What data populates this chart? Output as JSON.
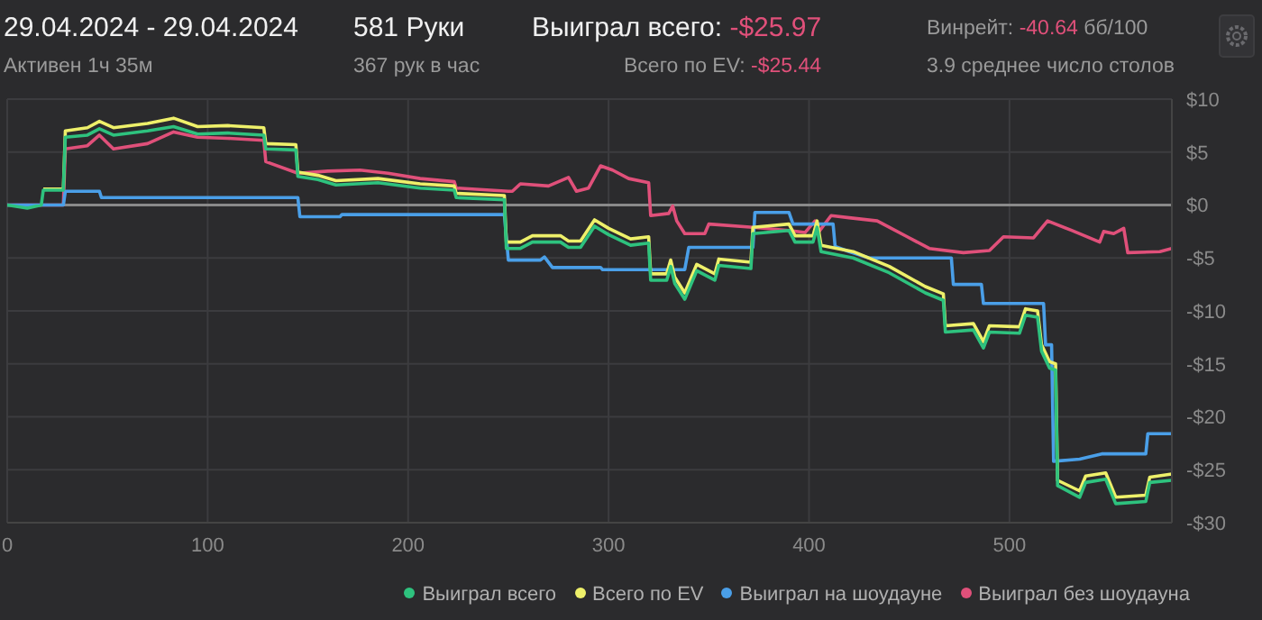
{
  "chart_data": {
    "type": "line",
    "title": "29.04.2024 - 29.04.2024",
    "subtitle": "Активен 1ч 35м",
    "annotations": [
      "581 Руки",
      "367 рук в час",
      "Выиграл всего: -$25.97",
      "Всего по EV: -$25.44",
      "Винрейт: -40.64 бб/100",
      "3.9 среднее число столов"
    ],
    "xlim": [
      0,
      581
    ],
    "xticks": [
      0,
      100,
      200,
      300,
      400,
      500
    ],
    "ylim": [
      -30,
      10
    ],
    "yticks": [
      {
        "value": 10,
        "label": "$10"
      },
      {
        "value": 5,
        "label": "$5"
      },
      {
        "value": 0,
        "label": "$0"
      },
      {
        "value": -5,
        "label": "-$5"
      },
      {
        "value": -10,
        "label": "-$10"
      },
      {
        "value": -15,
        "label": "-$15"
      },
      {
        "value": -20,
        "label": "-$20"
      },
      {
        "value": -25,
        "label": "-$25"
      },
      {
        "value": -30,
        "label": "-$30"
      }
    ],
    "grid": true,
    "legend": "bottom right",
    "ref_lines": [
      {
        "axis": "y",
        "value": 0,
        "color": "#8a8a8a"
      }
    ],
    "series": [
      {
        "name": "Выиграл всего",
        "color": "#2ec27e",
        "x": [
          0,
          10,
          17,
          18,
          28,
          29,
          40,
          46,
          53,
          70,
          83,
          95,
          110,
          128,
          129,
          144,
          145,
          155,
          164,
          185,
          206,
          223,
          224,
          248,
          249,
          256,
          262,
          276,
          280,
          286,
          293,
          300,
          311,
          320,
          321,
          329,
          331,
          333,
          338,
          344,
          353,
          355,
          371,
          372,
          390,
          393,
          402,
          404,
          406,
          422,
          440,
          458,
          467,
          468,
          482,
          487,
          490,
          505,
          508,
          514,
          516,
          520,
          523,
          524,
          535,
          538,
          548,
          553,
          568,
          570,
          581
        ],
        "values": [
          0,
          -0.3,
          0,
          1.4,
          1.4,
          6.4,
          6.6,
          7.2,
          6.6,
          7.0,
          7.4,
          6.7,
          6.8,
          6.6,
          5.3,
          5.2,
          2.7,
          2.4,
          1.9,
          2.1,
          1.6,
          1.4,
          0.7,
          0.5,
          -4.1,
          -4.1,
          -3.5,
          -3.5,
          -4.0,
          -4.0,
          -2.0,
          -2.8,
          -3.8,
          -3.6,
          -7.1,
          -7.1,
          -5.8,
          -7.4,
          -8.9,
          -6.2,
          -7.1,
          -5.7,
          -6.0,
          -2.7,
          -2.4,
          -3.5,
          -3.5,
          -2.1,
          -4.4,
          -5.0,
          -6.4,
          -8.3,
          -9.0,
          -12.0,
          -11.8,
          -13.5,
          -12.0,
          -12.1,
          -10.4,
          -10.6,
          -13.8,
          -15.4,
          -15.6,
          -26.5,
          -27.6,
          -26.2,
          -25.9,
          -28.2,
          -28.0,
          -26.2,
          -26.0
        ]
      },
      {
        "name": "Всего по EV",
        "color": "#eef06a",
        "x": [
          18,
          28,
          29,
          40,
          46,
          53,
          70,
          83,
          95,
          110,
          128,
          129,
          144,
          145,
          155,
          164,
          185,
          206,
          223,
          224,
          248,
          249,
          256,
          262,
          276,
          280,
          286,
          293,
          300,
          311,
          320,
          321,
          329,
          331,
          333,
          338,
          344,
          353,
          355,
          371,
          372,
          390,
          393,
          402,
          404,
          406,
          422,
          440,
          458,
          467,
          468,
          482,
          487,
          490,
          505,
          508,
          514,
          516,
          520,
          523,
          524,
          535,
          538,
          548,
          553,
          568,
          570,
          581
        ],
        "values": [
          1.5,
          1.5,
          7.0,
          7.3,
          7.9,
          7.3,
          7.7,
          8.2,
          7.4,
          7.5,
          7.3,
          5.8,
          5.7,
          3.1,
          2.8,
          2.3,
          2.5,
          2.0,
          1.8,
          1.1,
          0.9,
          -3.5,
          -3.5,
          -2.9,
          -2.9,
          -3.4,
          -3.4,
          -1.4,
          -2.2,
          -3.2,
          -3.0,
          -6.5,
          -6.5,
          -5.2,
          -6.8,
          -8.3,
          -5.6,
          -6.5,
          -5.1,
          -5.4,
          -2.1,
          -1.8,
          -2.9,
          -2.9,
          -1.5,
          -3.8,
          -4.4,
          -5.8,
          -7.7,
          -8.4,
          -11.4,
          -11.2,
          -12.9,
          -11.4,
          -11.5,
          -9.8,
          -10.0,
          -13.2,
          -14.8,
          -15.0,
          -26.0,
          -27.0,
          -25.6,
          -25.3,
          -27.6,
          -27.4,
          -25.7,
          -25.4
        ]
      },
      {
        "name": "Выиграл на шоудауне",
        "color": "#4a9fe8",
        "x": [
          0,
          28,
          29,
          46,
          47,
          145,
          146,
          166,
          167,
          248,
          250,
          266,
          268,
          272,
          296,
          297,
          338,
          340,
          372,
          373,
          390,
          392,
          412,
          413,
          420,
          430,
          471,
          472,
          486,
          487,
          517,
          518,
          521,
          522,
          535,
          546,
          568,
          569,
          581
        ],
        "values": [
          0,
          0,
          1.3,
          1.3,
          0.7,
          0.7,
          -1.1,
          -1.1,
          -0.9,
          -0.9,
          -5.2,
          -5.2,
          -4.9,
          -5.9,
          -5.9,
          -6.1,
          -6.1,
          -4.0,
          -4.0,
          -0.7,
          -0.7,
          -1.8,
          -1.8,
          -3.9,
          -4.4,
          -5.0,
          -5.0,
          -7.5,
          -7.5,
          -9.3,
          -9.3,
          -13.2,
          -13.2,
          -24.2,
          -24.0,
          -23.5,
          -23.5,
          -21.6,
          -21.6
        ]
      },
      {
        "name": "Выиграл без шоудауна",
        "color": "#e0507a",
        "x": [
          0,
          28,
          29,
          40,
          46,
          53,
          70,
          83,
          95,
          110,
          128,
          129,
          145,
          160,
          176,
          190,
          206,
          223,
          224,
          250,
          252,
          256,
          270,
          280,
          284,
          290,
          296,
          302,
          310,
          320,
          321,
          330,
          332,
          334,
          338,
          348,
          350,
          372,
          390,
          398,
          403,
          405,
          411,
          420,
          434,
          449,
          460,
          477,
          490,
          497,
          512,
          519,
          531,
          545,
          547,
          552,
          557,
          559,
          575,
          581
        ],
        "values": [
          0,
          0,
          5.3,
          5.6,
          6.6,
          5.3,
          5.8,
          6.9,
          6.4,
          6.3,
          6.1,
          4.1,
          3.0,
          3.2,
          3.3,
          3.0,
          2.5,
          2.2,
          1.6,
          1.3,
          1.3,
          2.0,
          1.8,
          2.6,
          1.3,
          1.6,
          3.7,
          3.3,
          2.5,
          2.1,
          -1.0,
          -0.8,
          -0.1,
          -1.5,
          -2.7,
          -2.7,
          -1.8,
          -2.1,
          -2.4,
          -2.6,
          -1.5,
          -2.5,
          -1.0,
          -1.2,
          -1.5,
          -3.0,
          -4.1,
          -4.5,
          -4.3,
          -3.0,
          -3.1,
          -1.5,
          -2.4,
          -3.5,
          -2.5,
          -2.7,
          -2.2,
          -4.5,
          -4.4,
          -4.1
        ]
      }
    ]
  }
}
